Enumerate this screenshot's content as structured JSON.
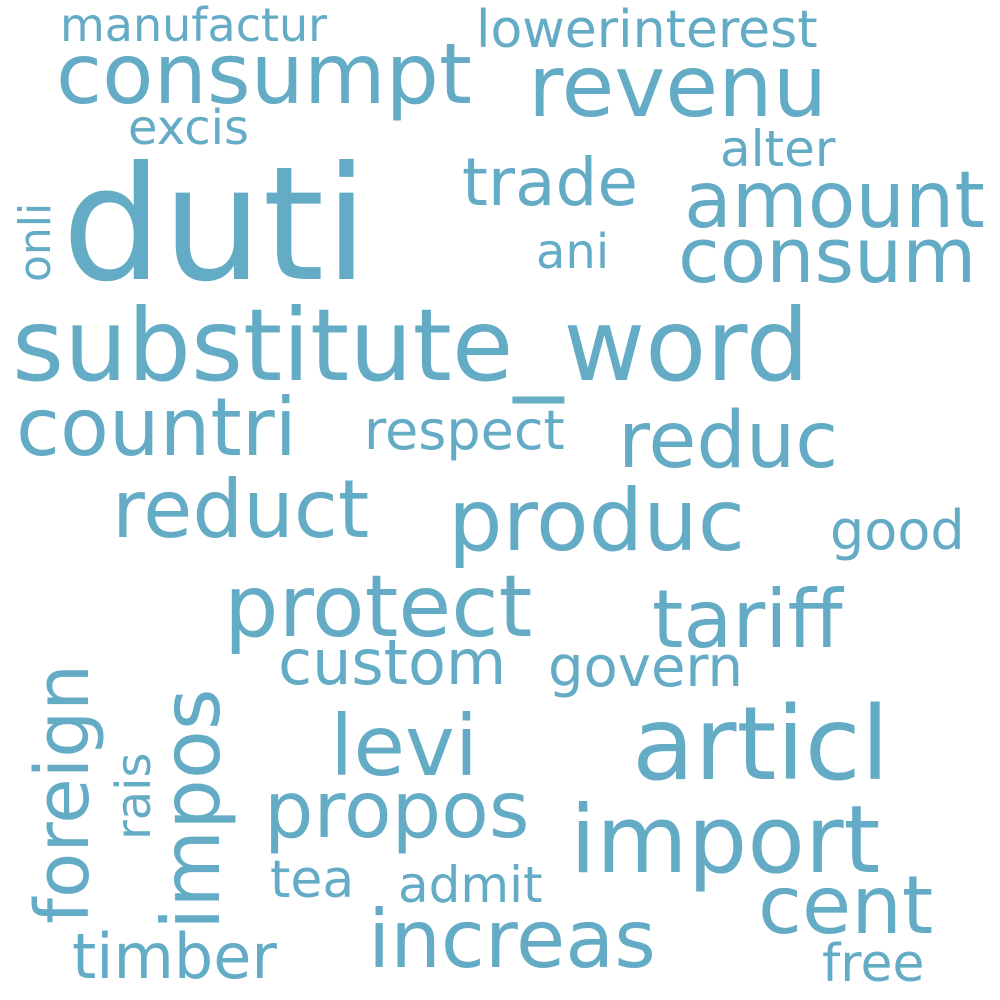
{
  "color": "#64abc6",
  "background": "#ffffff",
  "words": [
    "duti",
    "substitute_word",
    "articl",
    "import",
    "consumpt",
    "revenu",
    "amount",
    "consum",
    "produc",
    "protect",
    "tariff",
    "increas",
    "countri",
    "reduct",
    "reduc",
    "levi",
    "propos",
    "foreign",
    "impos",
    "cent",
    "custom",
    "trade",
    "govern",
    "timber",
    "respect",
    "lowerinterest",
    "manufactur",
    "excis",
    "alter",
    "ani",
    "onli",
    "good",
    "rais",
    "tea",
    "admit",
    "free"
  ]
}
